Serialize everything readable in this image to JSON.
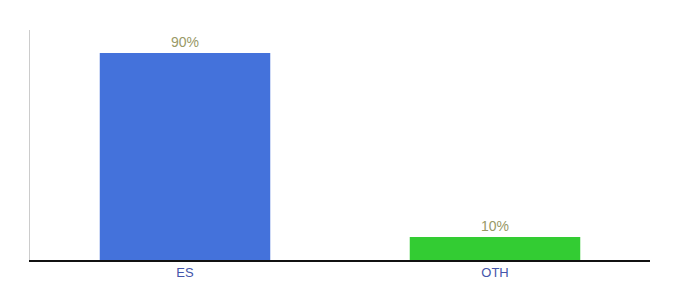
{
  "chart_data": {
    "type": "bar",
    "categories": [
      "ES",
      "OTH"
    ],
    "values": [
      90,
      10
    ],
    "value_labels": [
      "90%",
      "10%"
    ],
    "colors": [
      "#4472db",
      "#33cc33"
    ],
    "data_labels": true,
    "ylim": [
      0,
      100
    ],
    "yticks": [],
    "tick_labels": "x",
    "grid": false
  }
}
